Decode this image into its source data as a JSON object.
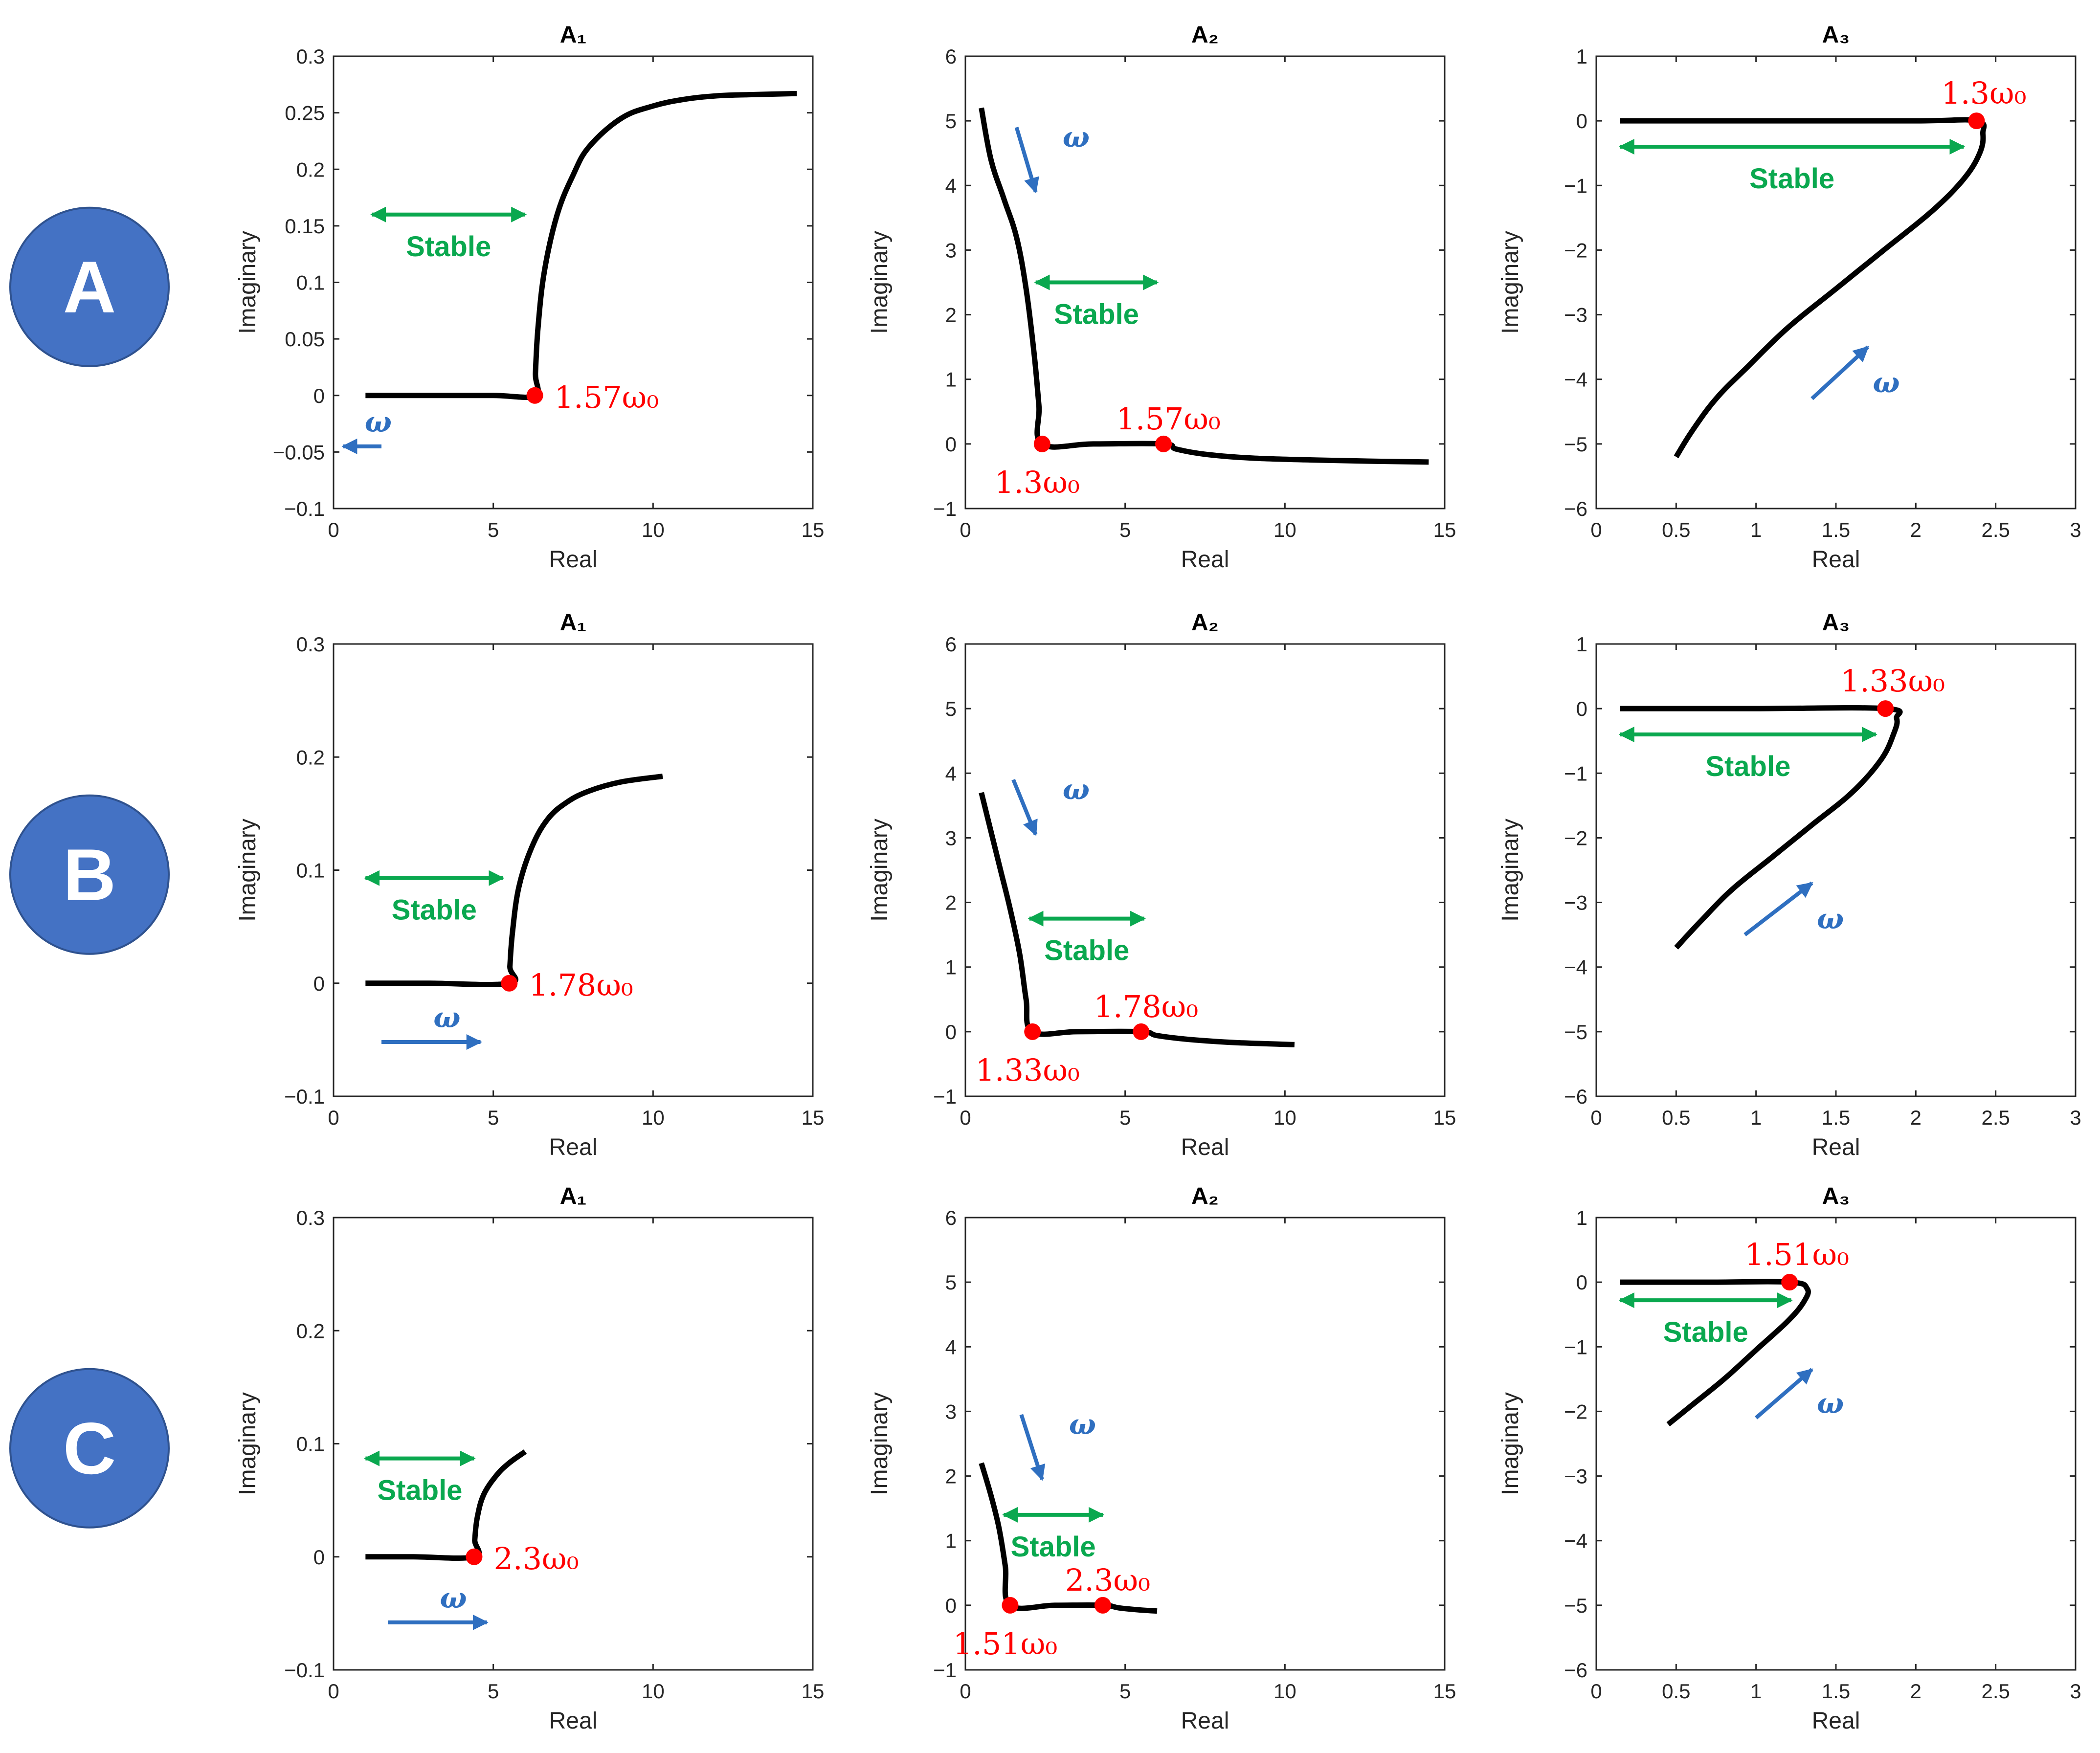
{
  "row_labels": [
    "A",
    "B",
    "C"
  ],
  "colors": {
    "curve": "#000000",
    "point": "#ff0000",
    "stable": "#0aa84f",
    "omega": "#2f6fc0",
    "circle": "#4472c4"
  },
  "chart_data": [
    {
      "type": "line",
      "row": "A",
      "title": "A₁",
      "xlabel": "Real",
      "ylabel": "Imaginary",
      "xlim": [
        0,
        15
      ],
      "ylim": [
        -0.1,
        0.3
      ],
      "xticks": [
        0,
        5,
        10,
        15
      ],
      "xtick_labels": [
        "0",
        "5",
        "10",
        "15"
      ],
      "yticks": [
        -0.1,
        -0.05,
        0,
        0.05,
        0.1,
        0.15,
        0.2,
        0.25,
        0.3
      ],
      "ytick_labels": [
        "−0.1",
        "−0.05",
        "0",
        "0.05",
        "0.1",
        "0.15",
        "0.2",
        "0.25",
        "0.3"
      ],
      "x": [
        1,
        3,
        5,
        6.3,
        6.32,
        6.4,
        6.6,
        7,
        7.5,
        8,
        9,
        10,
        11,
        12,
        13,
        14.5
      ],
      "y": [
        0,
        0,
        0,
        0,
        0.02,
        0.06,
        0.11,
        0.16,
        0.195,
        0.22,
        0.245,
        0.256,
        0.262,
        0.265,
        0.266,
        0.267
      ],
      "points": [
        {
          "x": 6.3,
          "y": 0,
          "label": "1.57ω₀"
        }
      ],
      "stable_label": "Stable",
      "stable_arrow": [
        1.2,
        6,
        0.16
      ],
      "omega_label": "ω",
      "omega_arrow": [
        1.5,
        0.3,
        -0.045,
        -0.045
      ]
    },
    {
      "type": "line",
      "row": "A",
      "title": "A₂",
      "xlabel": "Real",
      "ylabel": "Imaginary",
      "xlim": [
        0,
        15
      ],
      "ylim": [
        -1,
        6
      ],
      "xticks": [
        0,
        5,
        10,
        15
      ],
      "xtick_labels": [
        "0",
        "5",
        "10",
        "15"
      ],
      "yticks": [
        -1,
        0,
        1,
        2,
        3,
        4,
        5,
        6
      ],
      "ytick_labels": [
        "−1",
        "0",
        "1",
        "2",
        "3",
        "4",
        "5",
        "6"
      ],
      "x": [
        0.5,
        0.8,
        1.2,
        1.6,
        1.9,
        2.15,
        2.3,
        2.4,
        4,
        6.2,
        6.6,
        7.5,
        9,
        11,
        13,
        14.5
      ],
      "y": [
        5.2,
        4.4,
        3.8,
        3.2,
        2.4,
        1.4,
        0.6,
        0,
        0,
        0,
        -0.08,
        -0.16,
        -0.22,
        -0.25,
        -0.27,
        -0.28
      ],
      "points": [
        {
          "x": 2.4,
          "y": 0,
          "label": "1.3ω₀"
        },
        {
          "x": 6.2,
          "y": 0,
          "label": "1.57ω₀"
        }
      ],
      "stable_label": "Stable",
      "stable_arrow": [
        2.2,
        6,
        2.5
      ],
      "omega_label": "ω",
      "omega_arrow": [
        1.6,
        2.2,
        4.9,
        3.9
      ]
    },
    {
      "type": "line",
      "row": "A",
      "title": "A₃",
      "xlabel": "Real",
      "ylabel": "Imaginary",
      "xlim": [
        0,
        3
      ],
      "ylim": [
        -6,
        1
      ],
      "xticks": [
        0,
        0.5,
        1,
        1.5,
        2,
        2.5,
        3
      ],
      "xtick_labels": [
        "0",
        "0.5",
        "1",
        "1.5",
        "2",
        "2.5",
        "3"
      ],
      "yticks": [
        -6,
        -5,
        -4,
        -3,
        -2,
        -1,
        0,
        1
      ],
      "ytick_labels": [
        "−6",
        "−5",
        "−4",
        "−3",
        "−2",
        "−1",
        "0",
        "1"
      ],
      "x": [
        0.15,
        1,
        2,
        2.38,
        2.42,
        2.4,
        2.3,
        2.1,
        1.8,
        1.5,
        1.2,
        0.95,
        0.75,
        0.6,
        0.5
      ],
      "y": [
        0,
        0,
        0,
        0,
        -0.2,
        -0.5,
        -0.9,
        -1.4,
        -2,
        -2.6,
        -3.2,
        -3.8,
        -4.3,
        -4.8,
        -5.2
      ],
      "points": [
        {
          "x": 2.38,
          "y": 0,
          "label": "1.3ω₀"
        }
      ],
      "stable_label": "Stable",
      "stable_arrow": [
        0.15,
        2.3,
        -0.4
      ],
      "omega_label": "ω",
      "omega_arrow": [
        1.35,
        1.7,
        -4.3,
        -3.5
      ]
    },
    {
      "type": "line",
      "row": "B",
      "title": "A₁",
      "xlabel": "Real",
      "ylabel": "Imaginary",
      "xlim": [
        0,
        15
      ],
      "ylim": [
        -0.1,
        0.3
      ],
      "xticks": [
        0,
        5,
        10,
        15
      ],
      "xtick_labels": [
        "0",
        "5",
        "10",
        "15"
      ],
      "yticks": [
        -0.1,
        0,
        0.1,
        0.2,
        0.3
      ],
      "ytick_labels": [
        "−0.1",
        "0",
        "0.1",
        "0.2",
        "0.3"
      ],
      "x": [
        1,
        3,
        5.5,
        5.52,
        5.6,
        5.8,
        6.2,
        6.7,
        7.3,
        8,
        9,
        10.3
      ],
      "y": [
        0,
        0,
        0,
        0.015,
        0.045,
        0.085,
        0.12,
        0.145,
        0.16,
        0.17,
        0.178,
        0.183
      ],
      "points": [
        {
          "x": 5.5,
          "y": 0,
          "label": "1.78ω₀"
        }
      ],
      "stable_label": "Stable",
      "stable_arrow": [
        1,
        5.3,
        0.093
      ],
      "omega_label": "ω",
      "omega_arrow": [
        1.5,
        4.6,
        -0.052,
        -0.052
      ]
    },
    {
      "type": "line",
      "row": "B",
      "title": "A₂",
      "xlabel": "Real",
      "ylabel": "Imaginary",
      "xlim": [
        0,
        15
      ],
      "ylim": [
        -1,
        6
      ],
      "xticks": [
        0,
        5,
        10,
        15
      ],
      "xtick_labels": [
        "0",
        "5",
        "10",
        "15"
      ],
      "yticks": [
        -1,
        0,
        1,
        2,
        3,
        4,
        5,
        6
      ],
      "ytick_labels": [
        "−1",
        "0",
        "1",
        "2",
        "3",
        "4",
        "5",
        "6"
      ],
      "x": [
        0.5,
        0.8,
        1.1,
        1.4,
        1.7,
        1.9,
        2.1,
        3.5,
        5.5,
        6,
        7,
        8.5,
        10.3
      ],
      "y": [
        3.7,
        3.1,
        2.5,
        1.9,
        1.2,
        0.5,
        0,
        0,
        0,
        -0.06,
        -0.12,
        -0.17,
        -0.2
      ],
      "points": [
        {
          "x": 2.1,
          "y": 0,
          "label": "1.33ω₀"
        },
        {
          "x": 5.5,
          "y": 0,
          "label": "1.78ω₀"
        }
      ],
      "stable_label": "Stable",
      "stable_arrow": [
        2,
        5.6,
        1.75
      ],
      "omega_label": "ω",
      "omega_arrow": [
        1.5,
        2.2,
        3.9,
        3.05
      ]
    },
    {
      "type": "line",
      "row": "B",
      "title": "A₃",
      "xlabel": "Real",
      "ylabel": "Imaginary",
      "xlim": [
        0,
        3
      ],
      "ylim": [
        -6,
        1
      ],
      "xticks": [
        0,
        0.5,
        1,
        1.5,
        2,
        2.5,
        3
      ],
      "xtick_labels": [
        "0",
        "0.5",
        "1",
        "1.5",
        "2",
        "2.5",
        "3"
      ],
      "yticks": [
        -6,
        -5,
        -4,
        -3,
        -2,
        -1,
        0,
        1
      ],
      "ytick_labels": [
        "−6",
        "−5",
        "−4",
        "−3",
        "−2",
        "−1",
        "0",
        "1"
      ],
      "x": [
        0.15,
        1,
        1.81,
        1.88,
        1.86,
        1.78,
        1.6,
        1.35,
        1.1,
        0.85,
        0.65,
        0.5
      ],
      "y": [
        0,
        0,
        0,
        -0.15,
        -0.4,
        -0.8,
        -1.3,
        -1.8,
        -2.3,
        -2.8,
        -3.3,
        -3.7
      ],
      "points": [
        {
          "x": 1.81,
          "y": 0,
          "label": "1.33ω₀"
        }
      ],
      "stable_label": "Stable",
      "stable_arrow": [
        0.15,
        1.75,
        -0.4
      ],
      "omega_label": "ω",
      "omega_arrow": [
        0.93,
        1.35,
        -3.5,
        -2.7
      ]
    },
    {
      "type": "line",
      "row": "C",
      "title": "A₁",
      "xlabel": "Real",
      "ylabel": "Imaginary",
      "xlim": [
        0,
        15
      ],
      "ylim": [
        -0.1,
        0.3
      ],
      "xticks": [
        0,
        5,
        10,
        15
      ],
      "xtick_labels": [
        "0",
        "5",
        "10",
        "15"
      ],
      "yticks": [
        -0.1,
        0,
        0.1,
        0.2,
        0.3
      ],
      "ytick_labels": [
        "−0.1",
        "0",
        "0.1",
        "0.2",
        "0.3"
      ],
      "x": [
        1,
        2.5,
        4.4,
        4.42,
        4.5,
        4.7,
        5.1,
        5.5,
        6
      ],
      "y": [
        0,
        0,
        0,
        0.015,
        0.035,
        0.055,
        0.072,
        0.083,
        0.093
      ],
      "points": [
        {
          "x": 4.4,
          "y": 0,
          "label": "2.3ω₀"
        }
      ],
      "stable_label": "Stable",
      "stable_arrow": [
        1,
        4.4,
        0.087
      ],
      "omega_label": "ω",
      "omega_arrow": [
        1.7,
        4.8,
        -0.058,
        -0.058
      ]
    },
    {
      "type": "line",
      "row": "C",
      "title": "A₂",
      "xlabel": "Real",
      "ylabel": "Imaginary",
      "xlim": [
        0,
        15
      ],
      "ylim": [
        -1,
        6
      ],
      "xticks": [
        0,
        5,
        10,
        15
      ],
      "xtick_labels": [
        "0",
        "5",
        "10",
        "15"
      ],
      "yticks": [
        -1,
        0,
        1,
        2,
        3,
        4,
        5,
        6
      ],
      "ytick_labels": [
        "−1",
        "0",
        "1",
        "2",
        "3",
        "4",
        "5",
        "6"
      ],
      "x": [
        0.5,
        0.8,
        1.05,
        1.25,
        1.4,
        2.8,
        4.3,
        4.8,
        5.4,
        6
      ],
      "y": [
        2.2,
        1.7,
        1.2,
        0.6,
        0,
        0,
        0,
        -0.04,
        -0.07,
        -0.09
      ],
      "points": [
        {
          "x": 1.4,
          "y": 0,
          "label": "1.51ω₀"
        },
        {
          "x": 4.3,
          "y": 0,
          "label": "2.3ω₀"
        }
      ],
      "stable_label": "Stable",
      "stable_arrow": [
        1.2,
        4.3,
        1.4
      ],
      "omega_label": "ω",
      "omega_arrow": [
        1.75,
        2.4,
        2.95,
        1.95
      ]
    },
    {
      "type": "line",
      "row": "C",
      "title": "A₃",
      "xlabel": "Real",
      "ylabel": "Imaginary",
      "xlim": [
        0,
        3
      ],
      "ylim": [
        -6,
        1
      ],
      "xticks": [
        0,
        0.5,
        1,
        1.5,
        2,
        2.5,
        3
      ],
      "xtick_labels": [
        "0",
        "0.5",
        "1",
        "1.5",
        "2",
        "2.5",
        "3"
      ],
      "yticks": [
        -6,
        -5,
        -4,
        -3,
        -2,
        -1,
        0,
        1
      ],
      "ytick_labels": [
        "−6",
        "−5",
        "−4",
        "−3",
        "−2",
        "−1",
        "0",
        "1"
      ],
      "x": [
        0.15,
        0.7,
        1.21,
        1.32,
        1.3,
        1.2,
        1.0,
        0.8,
        0.6,
        0.45
      ],
      "y": [
        0,
        0,
        0,
        -0.1,
        -0.3,
        -0.6,
        -1.05,
        -1.5,
        -1.9,
        -2.2
      ],
      "points": [
        {
          "x": 1.21,
          "y": 0,
          "label": "1.51ω₀"
        }
      ],
      "stable_label": "Stable",
      "stable_arrow": [
        0.15,
        1.22,
        -0.28
      ],
      "omega_label": "ω",
      "omega_arrow": [
        1.0,
        1.35,
        -2.1,
        -1.35
      ]
    }
  ]
}
